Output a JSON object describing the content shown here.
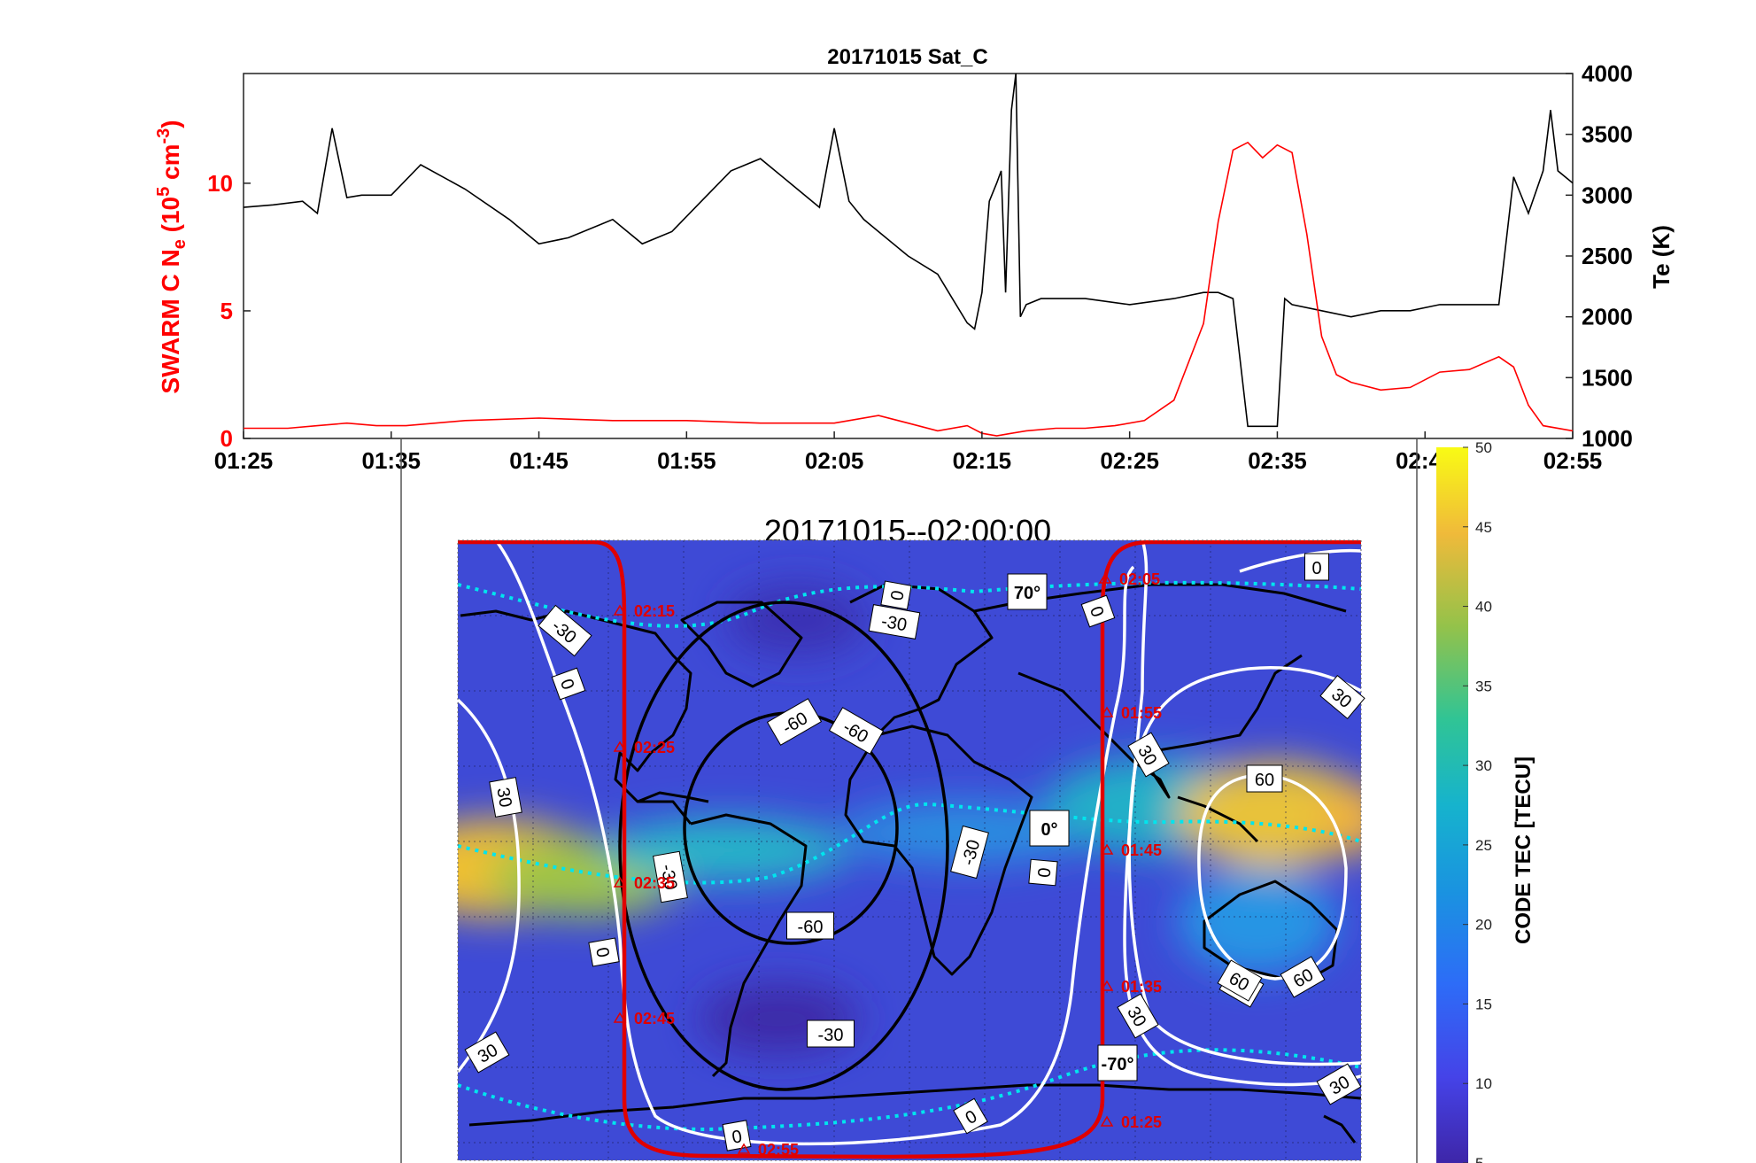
{
  "colors": {
    "ne_series": "#ff0000",
    "te_series": "#000000",
    "map_background": "#3e4ad6",
    "trajectory": "#e00000",
    "magnetic_equator": "#00e5ee",
    "contour_positive": "#ffffff",
    "contour_negative": "#000000"
  },
  "chart_data": [
    {
      "type": "line",
      "title": "20171015  Sat_C",
      "xlabel": "",
      "ylabel_left_prefix": "SWARM C  N",
      "ylabel_left_sub": "e",
      "ylabel_left_mid": " (10",
      "ylabel_left_sup5": "5",
      "ylabel_left_unit": " cm",
      "ylabel_left_sup": "-3",
      "ylabel_left_close": ")",
      "ylabel_right": "Te (K)",
      "xlim": [
        85,
        175
      ],
      "ylim_left": [
        0,
        14.3
      ],
      "ylim_right": [
        1000,
        4000
      ],
      "x_ticks": [
        85,
        95,
        105,
        115,
        125,
        135,
        145,
        155,
        165,
        175
      ],
      "x_tick_labels": [
        "01:25",
        "01:35",
        "01:45",
        "01:55",
        "02:05",
        "02:15",
        "02:25",
        "02:35",
        "02:45",
        "02:55"
      ],
      "left_ticks": [
        0,
        5,
        10
      ],
      "left_tick_labels": [
        "0",
        "5",
        "10"
      ],
      "right_ticks": [
        1000,
        1500,
        2000,
        2500,
        3000,
        3500,
        4000
      ],
      "right_tick_labels": [
        "1000",
        "1500",
        "2000",
        "2500",
        "3000",
        "3500",
        "4000"
      ],
      "series": [
        {
          "name": "Ne",
          "axis": "left",
          "x": [
            85,
            88,
            90,
            92,
            94,
            96,
            100,
            105,
            110,
            115,
            120,
            125,
            126,
            128,
            130,
            132,
            134,
            135,
            136,
            137,
            138,
            140,
            142,
            144,
            146,
            148,
            150,
            151,
            152,
            153,
            154,
            155,
            156,
            157,
            158,
            159,
            160,
            162,
            164,
            166,
            168,
            170,
            171,
            172,
            173,
            175
          ],
          "y": [
            0.4,
            0.4,
            0.5,
            0.6,
            0.5,
            0.5,
            0.7,
            0.8,
            0.7,
            0.7,
            0.6,
            0.6,
            0.7,
            0.9,
            0.6,
            0.3,
            0.5,
            0.2,
            0.1,
            0.2,
            0.3,
            0.4,
            0.4,
            0.5,
            0.7,
            1.5,
            4.5,
            8.5,
            11.3,
            11.6,
            11.0,
            11.5,
            11.2,
            8.0,
            4.0,
            2.5,
            2.2,
            1.9,
            2.0,
            2.6,
            2.7,
            3.2,
            2.8,
            1.3,
            0.5,
            0.3
          ]
        },
        {
          "name": "Te",
          "axis": "right",
          "x": [
            85,
            87,
            89,
            90,
            91,
            92,
            93,
            95,
            97,
            100,
            103,
            105,
            107,
            110,
            112,
            114,
            116,
            118,
            120,
            122,
            124,
            125,
            126,
            127,
            128,
            130,
            132,
            133,
            134,
            134.5,
            135,
            135.5,
            136,
            136.3,
            136.6,
            137,
            137.3,
            137.6,
            138,
            139,
            140,
            142,
            145,
            148,
            150,
            151,
            152,
            153,
            153.5,
            154,
            155,
            155.5,
            156,
            158,
            160,
            162,
            164,
            166,
            168,
            169,
            170,
            171,
            172,
            173,
            173.5,
            174,
            175
          ],
          "y": [
            2900,
            2920,
            2950,
            2850,
            3550,
            2980,
            3000,
            3000,
            3250,
            3050,
            2800,
            2600,
            2650,
            2800,
            2600,
            2700,
            2950,
            3200,
            3300,
            3100,
            2900,
            3550,
            2950,
            2800,
            2700,
            2500,
            2350,
            2150,
            1950,
            1900,
            2200,
            2950,
            3100,
            3200,
            2200,
            3700,
            4000,
            2000,
            2100,
            2150,
            2150,
            2150,
            2100,
            2150,
            2200,
            2200,
            2150,
            1100,
            1100,
            1100,
            1100,
            2150,
            2100,
            2050,
            2000,
            2050,
            2050,
            2100,
            2100,
            2100,
            2100,
            3150,
            2850,
            3200,
            3700,
            3200,
            3100
          ]
        }
      ]
    },
    {
      "type": "heatmap",
      "title": "20171015--02:00:00",
      "colorbar_label": "CODE TEC [TECU]",
      "colorbar_range": [
        5,
        50
      ],
      "colorbar_ticks": [
        5,
        10,
        15,
        20,
        25,
        30,
        35,
        40,
        45,
        50
      ],
      "colorbar_tick_labels": [
        "5",
        "10",
        "15",
        "20",
        "25",
        "30",
        "35",
        "40",
        "45",
        "50"
      ],
      "contour_labels": [
        "0",
        "0",
        "0",
        "0",
        "0",
        "0",
        "0",
        "0",
        "30",
        "30",
        "30",
        "30",
        "30",
        "30",
        "30",
        "-30",
        "-30",
        "-30",
        "-30",
        "-30",
        "-60",
        "-60",
        "-60",
        "60",
        "60",
        "60"
      ],
      "latitude_labels": [
        "70°",
        "0°",
        "-70°"
      ],
      "trajectory_times": [
        "02:05",
        "02:15",
        "02:25",
        "02:35",
        "02:45",
        "02:55",
        "01:55",
        "01:45",
        "01:35",
        "01:25"
      ]
    }
  ]
}
